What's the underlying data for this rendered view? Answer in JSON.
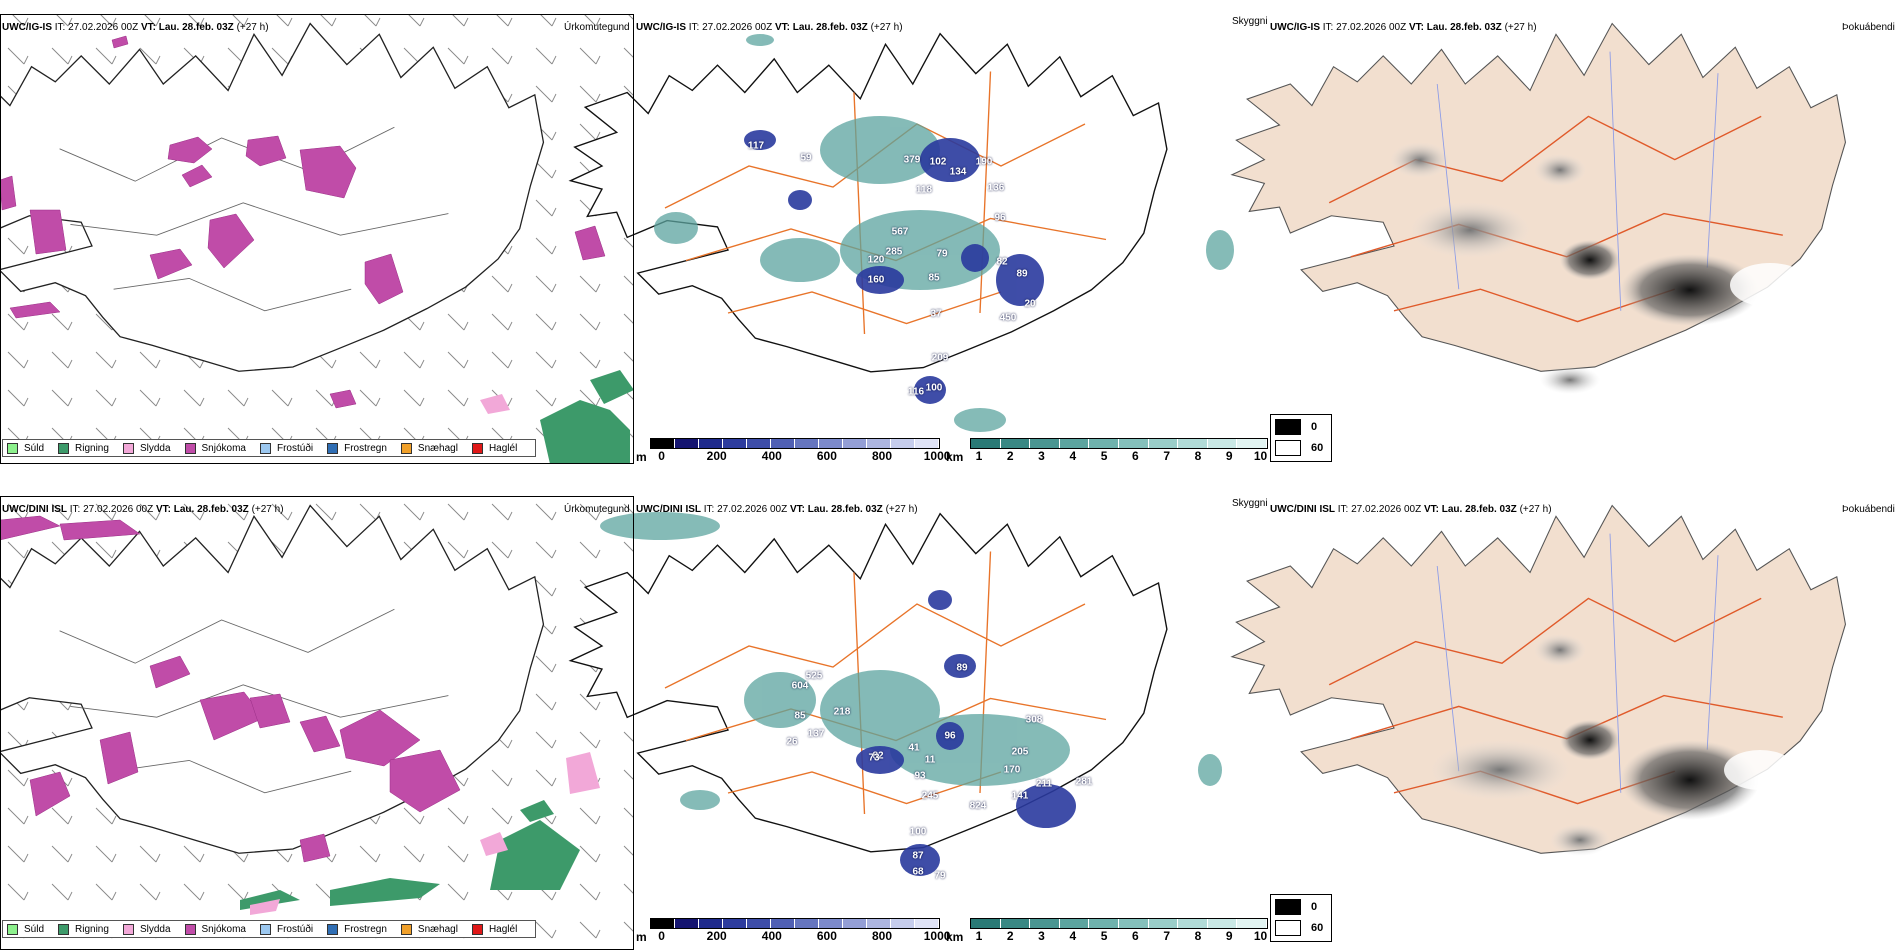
{
  "rows": [
    {
      "model": "UWC/IG-IS",
      "it_label": "IT:",
      "it_value": "27.02.2026 00Z",
      "vt_label": "VT:",
      "vt_value": "Lau. 28.feb. 03Z",
      "lead": "(+27 h)",
      "panels": [
        "Úrkomutegund",
        "Skyggni",
        "Þokuábendi"
      ],
      "precip_numbers": [
        "117",
        "59",
        "379",
        "102",
        "134",
        "190",
        "118",
        "136",
        "96",
        "567",
        "285",
        "120",
        "79",
        "82",
        "89",
        "160",
        "85",
        "37",
        "20",
        "450",
        "209",
        "100",
        "116"
      ],
      "visibility_labels": []
    },
    {
      "model": "UWC/DINI ISL",
      "it_label": "IT:",
      "it_value": "27.02.2026 00Z",
      "vt_label": "VT:",
      "vt_value": "Lau. 28.feb. 03Z",
      "lead": "(+27 h)",
      "panels": [
        "Úrkomutegund",
        "Skyggni",
        "Þokuábendi"
      ],
      "precip_numbers": [
        "89",
        "525",
        "604",
        "218",
        "137",
        "26",
        "96",
        "82",
        "41",
        "11",
        "308",
        "205",
        "170",
        "211",
        "281",
        "141",
        "824",
        "245",
        "100",
        "73",
        "68",
        "79",
        "85",
        "93",
        "87"
      ],
      "visibility_labels": []
    }
  ],
  "precip_type_legend": [
    {
      "label": "Súld",
      "color": "#8cf08c"
    },
    {
      "label": "Rigning",
      "color": "#3d9a6a"
    },
    {
      "label": "Slydda",
      "color": "#f2a8d8"
    },
    {
      "label": "Snjókoma",
      "color": "#c04ca8"
    },
    {
      "label": "Frostúði",
      "color": "#9cc8f0"
    },
    {
      "label": "Frostregn",
      "color": "#2f6eb4"
    },
    {
      "label": "Snæhagl",
      "color": "#f0a02a"
    },
    {
      "label": "Haglél",
      "color": "#e01818"
    }
  ],
  "height_colorbar": {
    "unit": "m",
    "ticks": [
      "0",
      "200",
      "400",
      "600",
      "800",
      "1000"
    ],
    "colors": [
      "#000000",
      "#141470",
      "#1e2a8c",
      "#2d3c9e",
      "#3d4da8",
      "#5060b4",
      "#6575bf",
      "#7c8acb",
      "#949fd6",
      "#adb6e1",
      "#c6cdec",
      "#dfe3f6"
    ]
  },
  "visibility_colorbar": {
    "unit": "km",
    "ticks": [
      "1",
      "2",
      "3",
      "4",
      "5",
      "6",
      "7",
      "8",
      "9",
      "10"
    ],
    "colors": [
      "#2a7a76",
      "#3a8884",
      "#4a9692",
      "#5ca49f",
      "#6fb2ad",
      "#84c0bb",
      "#9acec9",
      "#b1dbd7",
      "#c9e8e5",
      "#e2f4f2"
    ]
  },
  "fog_legend": [
    {
      "label": "0",
      "color": "#000000"
    },
    {
      "label": "60",
      "color": "#ffffff"
    }
  ],
  "colors": {
    "snow": "#c04ca8",
    "rain": "#3d9a6a",
    "sleet": "#f2a8d8",
    "visibility": "#5ca49f",
    "low_cloud": "#2a3a9e",
    "roads": "#e8742a",
    "land_beige": "#f2dfcf",
    "rivers": "#8a9ae8",
    "coast": "#111111"
  }
}
